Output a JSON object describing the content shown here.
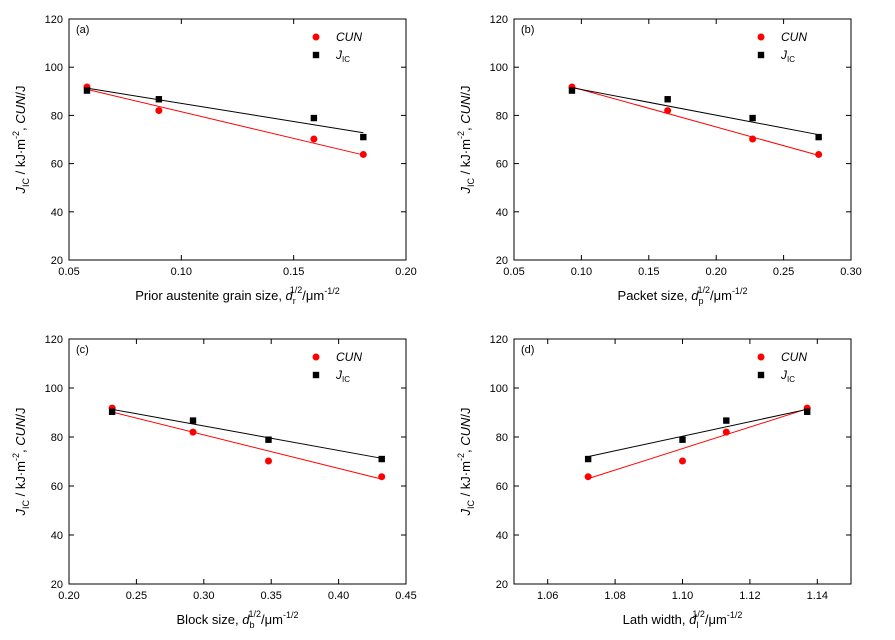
{
  "colors": {
    "cun": "#ff0000",
    "jic": "#000000"
  },
  "chart_data": [
    {
      "type": "scatter",
      "label": "(a)",
      "xlabel": {
        "text": "Prior austenite grain size, ",
        "var": "d",
        "sub": "r",
        "sup": "1/2",
        "unit": "/μm",
        "unit_sup": "-1/2"
      },
      "ylabel": {
        "var": "J",
        "sub": "IC",
        "mid": " / kJ·m",
        "mid_sup": "-2",
        "tail": ", ",
        "tail_var": "CUN",
        "end": "/J"
      },
      "xlim": [
        0.05,
        0.2
      ],
      "ylim": [
        20,
        120
      ],
      "xticks": [
        0.05,
        0.1,
        0.15,
        0.2
      ],
      "xtick_labels": [
        "0.05",
        "0.10",
        "0.15",
        "0.20"
      ],
      "yticks": [
        20,
        40,
        60,
        80,
        100,
        120
      ],
      "ytick_labels": [
        "20",
        "40",
        "60",
        "80",
        "100",
        "120"
      ],
      "legend_position": "top-right",
      "series": [
        {
          "name": "CUN",
          "marker": "circle",
          "x": [
            0.058,
            0.09,
            0.159,
            0.181
          ],
          "y": [
            91.8,
            82.0,
            70.2,
            63.8
          ],
          "fit": [
            [
              0.058,
              90.8
            ],
            [
              0.181,
              63.6
            ]
          ]
        },
        {
          "name": "J_IC",
          "marker": "square",
          "x": [
            0.058,
            0.09,
            0.159,
            0.181
          ],
          "y": [
            90.3,
            86.7,
            78.9,
            71.0
          ],
          "fit": [
            [
              0.058,
              91.3
            ],
            [
              0.181,
              72.8
            ]
          ]
        }
      ]
    },
    {
      "type": "scatter",
      "label": "(b)",
      "xlabel": {
        "text": "Packet size, ",
        "var": "d",
        "sub": "p",
        "sup": "1/2",
        "unit": "/μm",
        "unit_sup": "-1/2"
      },
      "ylabel": {
        "var": "J",
        "sub": "IC",
        "mid": " / kJ·m",
        "mid_sup": "-2",
        "tail": ", ",
        "tail_var": "CUN",
        "end": "/J"
      },
      "xlim": [
        0.05,
        0.3
      ],
      "ylim": [
        20,
        120
      ],
      "xticks": [
        0.05,
        0.1,
        0.15,
        0.2,
        0.25,
        0.3
      ],
      "xtick_labels": [
        "0.05",
        "0.10",
        "0.15",
        "0.20",
        "0.25",
        "0.30"
      ],
      "yticks": [
        20,
        40,
        60,
        80,
        100,
        120
      ],
      "ytick_labels": [
        "20",
        "40",
        "60",
        "80",
        "100",
        "120"
      ],
      "legend_position": "top-right",
      "series": [
        {
          "name": "CUN",
          "marker": "circle",
          "x": [
            0.093,
            0.164,
            0.227,
            0.276
          ],
          "y": [
            91.8,
            82.0,
            70.2,
            63.8
          ],
          "fit": [
            [
              0.093,
              91.8
            ],
            [
              0.276,
              63.4
            ]
          ]
        },
        {
          "name": "J_IC",
          "marker": "square",
          "x": [
            0.093,
            0.164,
            0.227,
            0.276
          ],
          "y": [
            90.3,
            86.7,
            78.9,
            71.0
          ],
          "fit": [
            [
              0.093,
              91.5
            ],
            [
              0.276,
              72.0
            ]
          ]
        }
      ]
    },
    {
      "type": "scatter",
      "label": "(c)",
      "xlabel": {
        "text": "Block size, ",
        "var": "d",
        "sub": "b",
        "sup": "1/2",
        "unit": "/μm",
        "unit_sup": "-1/2"
      },
      "ylabel": {
        "var": "J",
        "sub": "IC",
        "mid": " / kJ·m",
        "mid_sup": "-2",
        "tail": ", ",
        "tail_var": "CUN",
        "end": "/J"
      },
      "xlim": [
        0.2,
        0.45
      ],
      "ylim": [
        20,
        120
      ],
      "xticks": [
        0.2,
        0.25,
        0.3,
        0.35,
        0.4,
        0.45
      ],
      "xtick_labels": [
        "0.20",
        "0.25",
        "0.30",
        "0.35",
        "0.40",
        "0.45"
      ],
      "yticks": [
        20,
        40,
        60,
        80,
        100,
        120
      ],
      "ytick_labels": [
        "20",
        "40",
        "60",
        "80",
        "100",
        "120"
      ],
      "legend_position": "top-right",
      "series": [
        {
          "name": "CUN",
          "marker": "circle",
          "x": [
            0.232,
            0.292,
            0.348,
            0.432
          ],
          "y": [
            91.8,
            82.0,
            70.2,
            63.8
          ],
          "fit": [
            [
              0.232,
              90.2
            ],
            [
              0.432,
              62.8
            ]
          ]
        },
        {
          "name": "J_IC",
          "marker": "square",
          "x": [
            0.232,
            0.292,
            0.348,
            0.432
          ],
          "y": [
            90.3,
            86.7,
            78.9,
            71.0
          ],
          "fit": [
            [
              0.232,
              91.3
            ],
            [
              0.432,
              71.3
            ]
          ]
        }
      ]
    },
    {
      "type": "scatter",
      "label": "(d)",
      "xlabel": {
        "text": "Lath width, ",
        "var": "d",
        "sub": "l",
        "sup": "1/2",
        "unit": "/μm",
        "unit_sup": "-1/2"
      },
      "ylabel": {
        "var": "J",
        "sub": "IC",
        "mid": " / kJ·m",
        "mid_sup": "-2",
        "tail": ", ",
        "tail_var": "CUN",
        "end": "/J"
      },
      "xlim": [
        1.05,
        1.15
      ],
      "ylim": [
        20,
        120
      ],
      "xticks": [
        1.06,
        1.08,
        1.1,
        1.12,
        1.14
      ],
      "xtick_labels": [
        "1.06",
        "1.08",
        "1.10",
        "1.12",
        "1.14"
      ],
      "yticks": [
        20,
        40,
        60,
        80,
        100,
        120
      ],
      "ytick_labels": [
        "20",
        "40",
        "60",
        "80",
        "100",
        "120"
      ],
      "legend_position": "top-right",
      "series": [
        {
          "name": "CUN",
          "marker": "circle",
          "x": [
            1.072,
            1.1,
            1.113,
            1.137
          ],
          "y": [
            63.8,
            70.2,
            82.0,
            91.8
          ],
          "fit": [
            [
              1.072,
              63.0
            ],
            [
              1.137,
              91.5
            ]
          ]
        },
        {
          "name": "J_IC",
          "marker": "square",
          "x": [
            1.072,
            1.1,
            1.113,
            1.137
          ],
          "y": [
            71.0,
            78.9,
            86.7,
            90.3
          ],
          "fit": [
            [
              1.072,
              72.0
            ],
            [
              1.137,
              91.3
            ]
          ]
        }
      ]
    }
  ]
}
